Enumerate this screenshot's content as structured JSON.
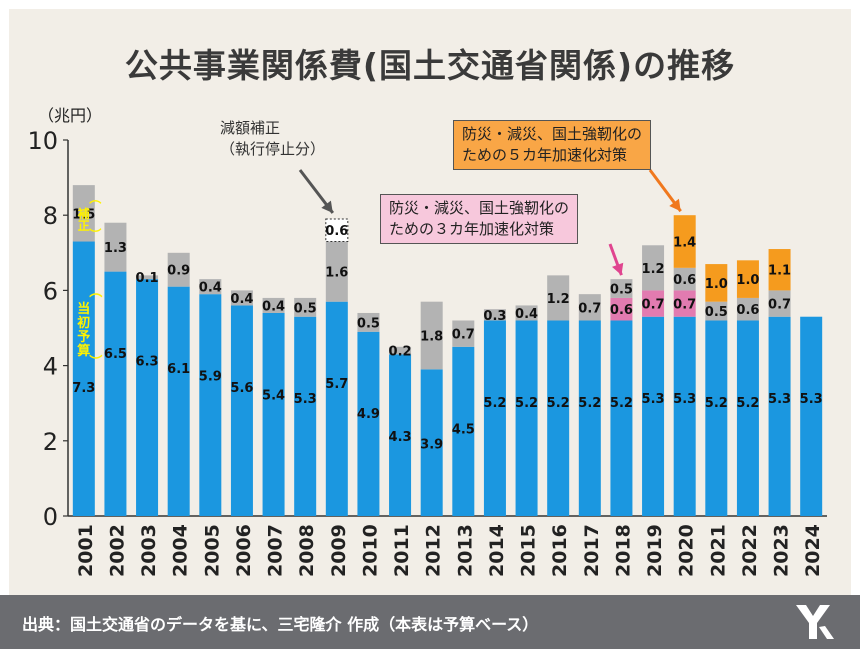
{
  "title": "公共事業関係費(国土交通省関係)の推移",
  "footer": "出典：国土交通省のデータを基に、三宅隆介 作成（本表は予算ベース）",
  "annotations": {
    "budget_cut": [
      "減額補正",
      "（執行停止分）"
    ],
    "plan_3yr": [
      "防災・減災、国土強靭化の",
      "ための３カ年加速化対策"
    ],
    "plan_5yr": [
      "防災・減災、国土強靭化の",
      "ための５カ年加速化対策"
    ],
    "supplementary_label": [
      "（",
      "補",
      "正",
      "）"
    ],
    "initial_label": [
      "（",
      "当",
      "初",
      "予",
      "算",
      "）"
    ]
  },
  "colors": {
    "initial": "#1b97e0",
    "supplementary": "#b3b3b3",
    "plan_3yr": "#e27bb0",
    "plan_5yr": "#f59b1e",
    "vertical_label": "#fff200"
  },
  "chart_data": {
    "type": "bar",
    "stacked": true,
    "ylabel": "（兆円）",
    "ylim": [
      0,
      10
    ],
    "yticks": [
      0,
      2,
      4,
      6,
      8,
      10
    ],
    "categories": [
      "2001",
      "2002",
      "2003",
      "2004",
      "2005",
      "2006",
      "2007",
      "2008",
      "2009",
      "2010",
      "2011",
      "2012",
      "2013",
      "2014",
      "2015",
      "2016",
      "2017",
      "2018",
      "2019",
      "2020",
      "2021",
      "2022",
      "2023",
      "2024"
    ],
    "series": [
      {
        "key": "initial",
        "values": [
          7.3,
          6.5,
          6.3,
          6.1,
          5.9,
          5.6,
          5.4,
          5.3,
          5.7,
          4.9,
          4.3,
          3.9,
          4.5,
          5.2,
          5.2,
          5.2,
          5.2,
          5.2,
          5.3,
          5.3,
          5.2,
          5.2,
          5.3,
          5.3
        ]
      },
      {
        "key": "plan_3yr",
        "values": [
          0,
          0,
          0,
          0,
          0,
          0,
          0,
          0,
          0,
          0,
          0,
          0,
          0,
          0,
          0,
          0,
          0,
          0.6,
          0.7,
          0.7,
          0,
          0,
          0,
          0
        ]
      },
      {
        "key": "supplementary",
        "values": [
          1.5,
          1.3,
          0.1,
          0.9,
          0.4,
          0.4,
          0.4,
          0.5,
          1.6,
          0.5,
          0.2,
          1.8,
          0.7,
          0.3,
          0.4,
          1.2,
          0.7,
          0.5,
          1.2,
          0.6,
          0.5,
          0.6,
          0.7,
          0
        ]
      },
      {
        "key": "plan_5yr",
        "values": [
          0,
          0,
          0,
          0,
          0,
          0,
          0,
          0,
          0,
          0,
          0,
          0,
          0,
          0,
          0,
          0,
          0,
          0,
          0,
          1.4,
          1.0,
          1.0,
          1.1,
          0
        ]
      }
    ],
    "budget_cut": {
      "category": "2009",
      "value": 0.6
    },
    "grid": false
  }
}
